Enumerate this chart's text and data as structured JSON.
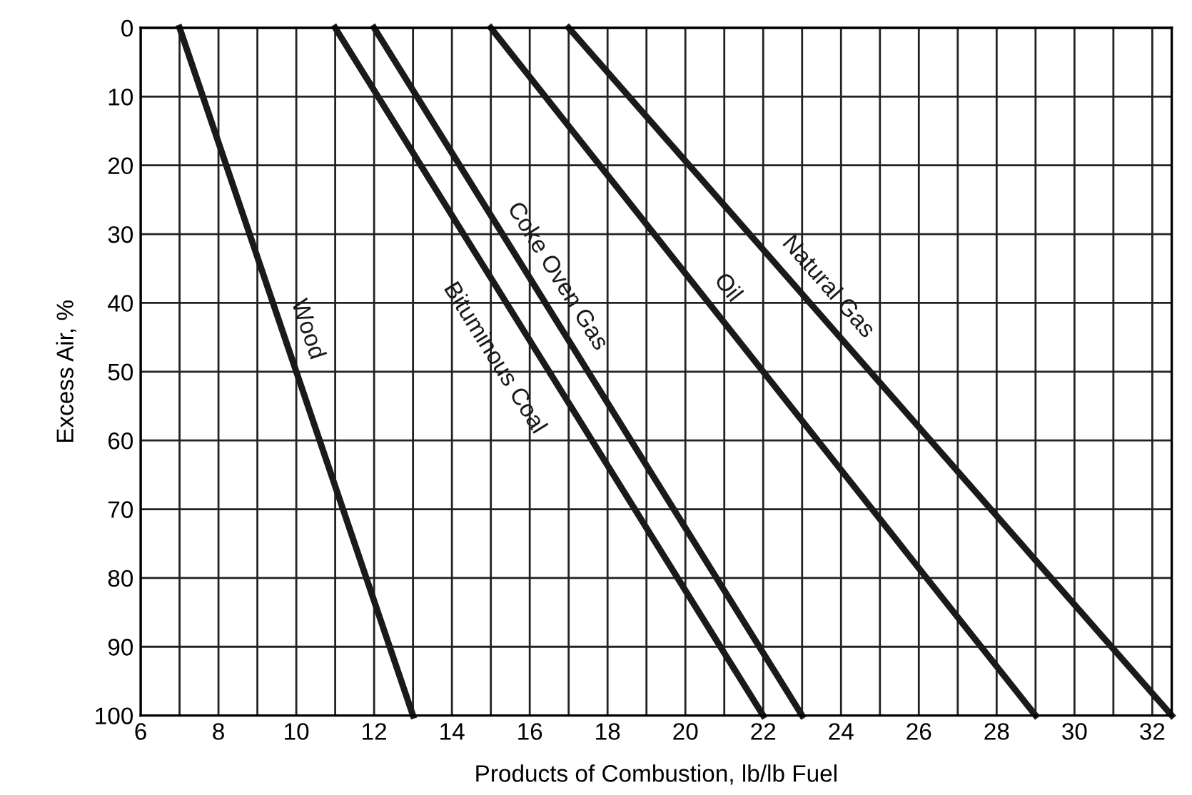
{
  "chart_data": {
    "type": "line",
    "xlabel": "Products of Combustion, lb/lb Fuel",
    "ylabel": "Excess Air, %",
    "xlim": [
      6,
      32.5
    ],
    "ylim": [
      100,
      0
    ],
    "xticks": [
      6,
      {
        "value": 7,
        "label": null
      },
      8,
      {
        "value": 9,
        "label": null
      },
      10,
      {
        "value": 11,
        "label": null
      },
      12,
      {
        "value": 13,
        "label": null
      },
      14,
      {
        "value": 15,
        "label": null
      },
      16,
      {
        "value": 17,
        "label": null
      },
      18,
      {
        "value": 19,
        "label": null
      },
      20,
      {
        "value": 21,
        "label": null
      },
      22,
      {
        "value": 23,
        "label": null
      },
      24,
      {
        "value": 25,
        "label": null
      },
      26,
      {
        "value": 27,
        "label": null
      },
      28,
      {
        "value": 29,
        "label": null
      },
      30,
      {
        "value": 31,
        "label": null
      },
      32
    ],
    "yticks": [
      0,
      10,
      20,
      30,
      40,
      50,
      60,
      70,
      80,
      90,
      100
    ],
    "grid": true,
    "legend": false,
    "line_style": "solid",
    "marker": "none",
    "series": [
      {
        "name": "Wood",
        "color": "#1a1a1a",
        "x": [
          7,
          13
        ],
        "values": [
          0,
          100
        ]
      },
      {
        "name": "Bituminous Coal",
        "color": "#1a1a1a",
        "x": [
          11,
          22
        ],
        "values": [
          0,
          100
        ]
      },
      {
        "name": "Coke Oven Gas",
        "color": "#1a1a1a",
        "x": [
          12,
          23
        ],
        "values": [
          0,
          100
        ]
      },
      {
        "name": "Oil",
        "color": "#1a1a1a",
        "x": [
          15,
          29
        ],
        "values": [
          0,
          100
        ]
      },
      {
        "name": "Natural Gas",
        "color": "#1a1a1a",
        "x": [
          17,
          32.5
        ],
        "values": [
          0,
          100
        ]
      }
    ]
  }
}
